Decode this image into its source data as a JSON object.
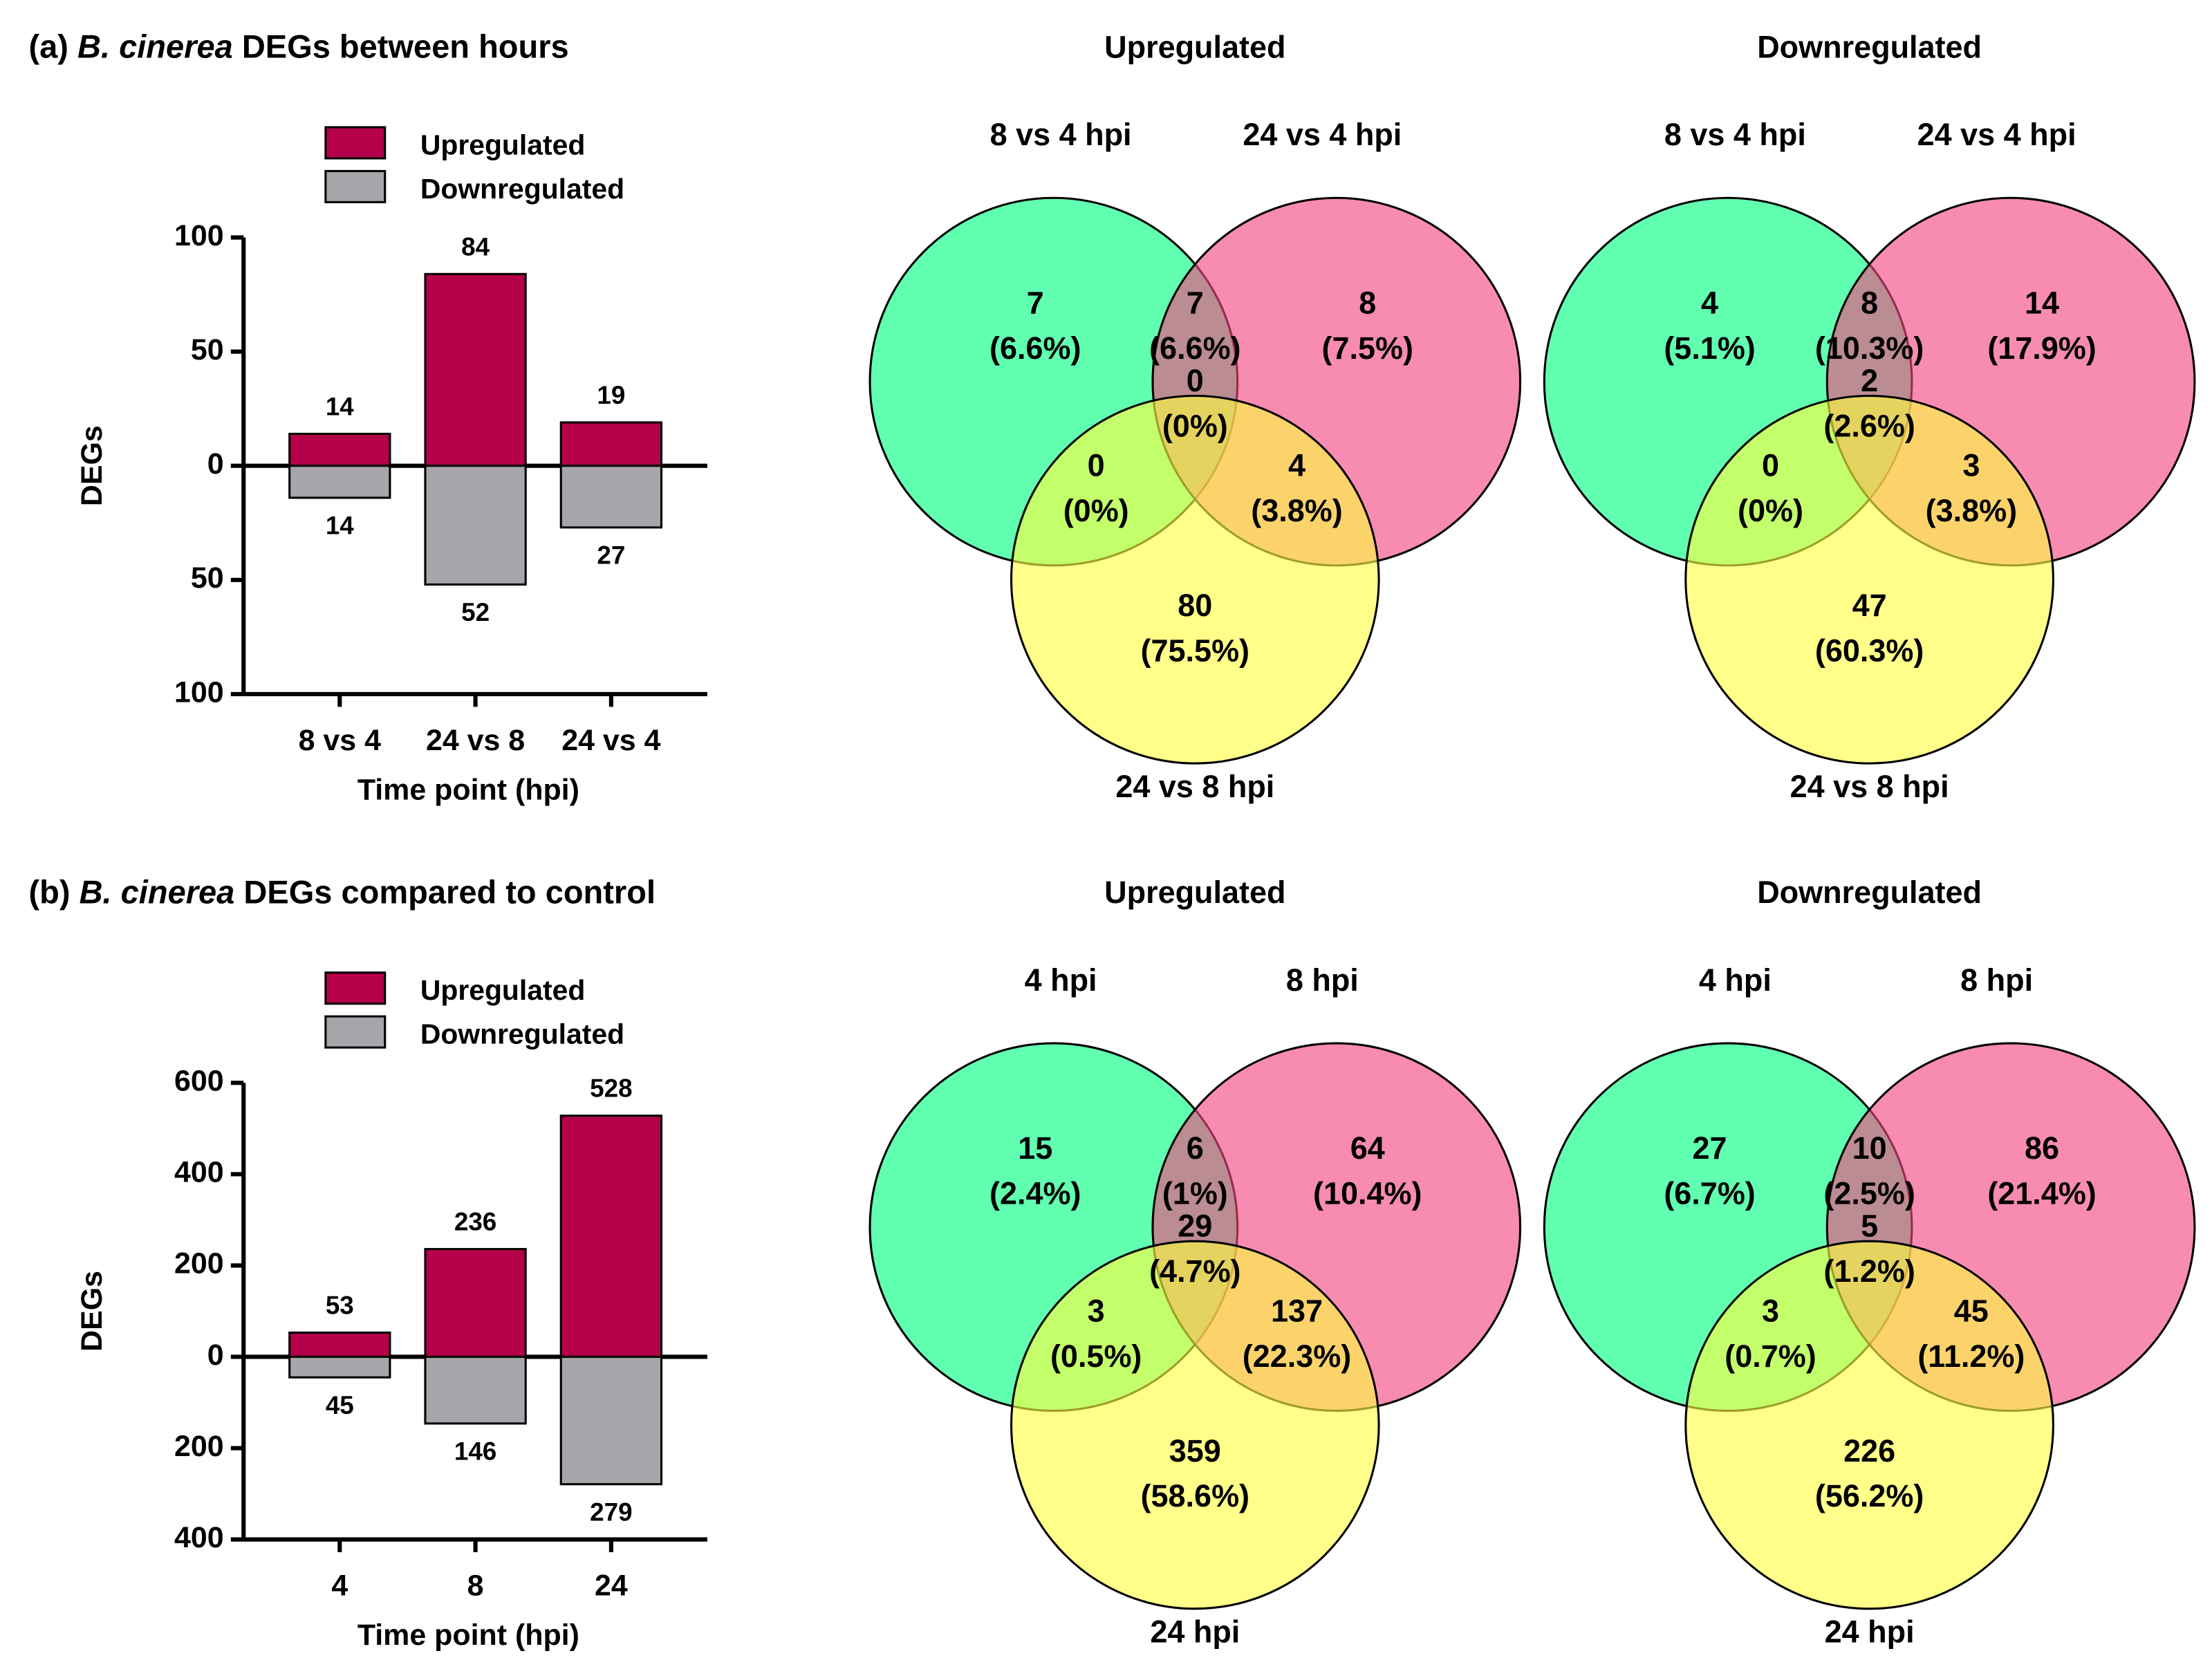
{
  "chart_data": [
    {
      "type": "bar",
      "title_parts": [
        "(a) ",
        "B. cinerea",
        " DEGs between hours"
      ],
      "categories": [
        "8 vs 4",
        "24 vs 8",
        "24 vs 4"
      ],
      "series": [
        {
          "name": "Upregulated",
          "color": "#b5004a",
          "values": [
            14,
            84,
            19
          ]
        },
        {
          "name": "Downregulated",
          "color": "#a7a4aa",
          "values": [
            -14,
            -52,
            -27
          ],
          "value_labels": [
            "14",
            "52",
            "27"
          ]
        }
      ],
      "ylim": [
        -100,
        100
      ],
      "yticks": [
        100,
        50,
        0,
        {
          "value": -50,
          "label": "50"
        },
        {
          "value": -100,
          "label": "100"
        }
      ],
      "ylabel": "DEGs",
      "xlabel": "Time point (hpi)"
    },
    {
      "type": "venn",
      "title": "Upregulated",
      "sets": [
        {
          "name": "8 vs 4 hpi",
          "color": "#00ff80"
        },
        {
          "name": "24 vs 4 hpi",
          "color": "#f2457f"
        },
        {
          "name": "24 vs 8 hpi",
          "color": "#ffff40"
        }
      ],
      "regions": [
        {
          "value": 7,
          "label": "(6.6%)"
        },
        {
          "value": 7,
          "label": "(6.6%)"
        },
        {
          "value": 8,
          "label": "(7.5%)"
        },
        {
          "value": 0,
          "label": "(0%)"
        },
        {
          "value": 0,
          "label": "(0%)"
        },
        {
          "value": 4,
          "label": "(3.8%)"
        },
        {
          "value": 80,
          "label": "(75.5%)"
        }
      ]
    },
    {
      "type": "venn",
      "title": "Downregulated",
      "sets": [
        {
          "name": "8 vs 4 hpi",
          "color": "#00ff80"
        },
        {
          "name": "24 vs 4 hpi",
          "color": "#f2457f"
        },
        {
          "name": "24 vs 8 hpi",
          "color": "#ffff40"
        }
      ],
      "regions": [
        {
          "value": 4,
          "label": "(5.1%)"
        },
        {
          "value": 8,
          "label": "(10.3%)"
        },
        {
          "value": 14,
          "label": "(17.9%)"
        },
        {
          "value": 2,
          "label": "(2.6%)"
        },
        {
          "value": 0,
          "label": "(0%)"
        },
        {
          "value": 3,
          "label": "(3.8%)"
        },
        {
          "value": 47,
          "label": "(60.3%)"
        }
      ]
    },
    {
      "type": "bar",
      "title_parts": [
        "(b) ",
        "B. cinerea",
        " DEGs compared to control"
      ],
      "categories": [
        "4",
        "8",
        "24"
      ],
      "series": [
        {
          "name": "Upregulated",
          "color": "#b5004a",
          "values": [
            53,
            236,
            528
          ]
        },
        {
          "name": "Downregulated",
          "color": "#a7a4aa",
          "values": [
            -45,
            -146,
            -279
          ],
          "value_labels": [
            "45",
            "146",
            "279"
          ]
        }
      ],
      "ylim": [
        -400,
        600
      ],
      "yticks": [
        600,
        400,
        200,
        0,
        {
          "value": -200,
          "label": "200"
        },
        {
          "value": -400,
          "label": "400"
        }
      ],
      "ylabel": "DEGs",
      "xlabel": "Time point (hpi)"
    },
    {
      "type": "venn",
      "title": "Upregulated",
      "sets": [
        {
          "name": "4 hpi",
          "color": "#00ff80"
        },
        {
          "name": "8 hpi",
          "color": "#f2457f"
        },
        {
          "name": "24 hpi",
          "color": "#ffff40"
        }
      ],
      "regions": [
        {
          "value": 15,
          "label": "(2.4%)"
        },
        {
          "value": 6,
          "label": "(1%)"
        },
        {
          "value": 64,
          "label": "(10.4%)"
        },
        {
          "value": 29,
          "label": "(4.7%)"
        },
        {
          "value": 3,
          "label": "(0.5%)"
        },
        {
          "value": 137,
          "label": "(22.3%)"
        },
        {
          "value": 359,
          "label": "(58.6%)"
        }
      ]
    },
    {
      "type": "venn",
      "title": "Downregulated",
      "sets": [
        {
          "name": "4 hpi",
          "color": "#00ff80"
        },
        {
          "name": "8 hpi",
          "color": "#f2457f"
        },
        {
          "name": "24 hpi",
          "color": "#ffff40"
        }
      ],
      "regions": [
        {
          "value": 27,
          "label": "(6.7%)"
        },
        {
          "value": 10,
          "label": "(2.5%)"
        },
        {
          "value": 86,
          "label": "(21.4%)"
        },
        {
          "value": 5,
          "label": "(1.2%)"
        },
        {
          "value": 3,
          "label": "(0.7%)"
        },
        {
          "value": 45,
          "label": "(11.2%)"
        },
        {
          "value": 226,
          "label": "(56.2%)"
        }
      ]
    }
  ]
}
